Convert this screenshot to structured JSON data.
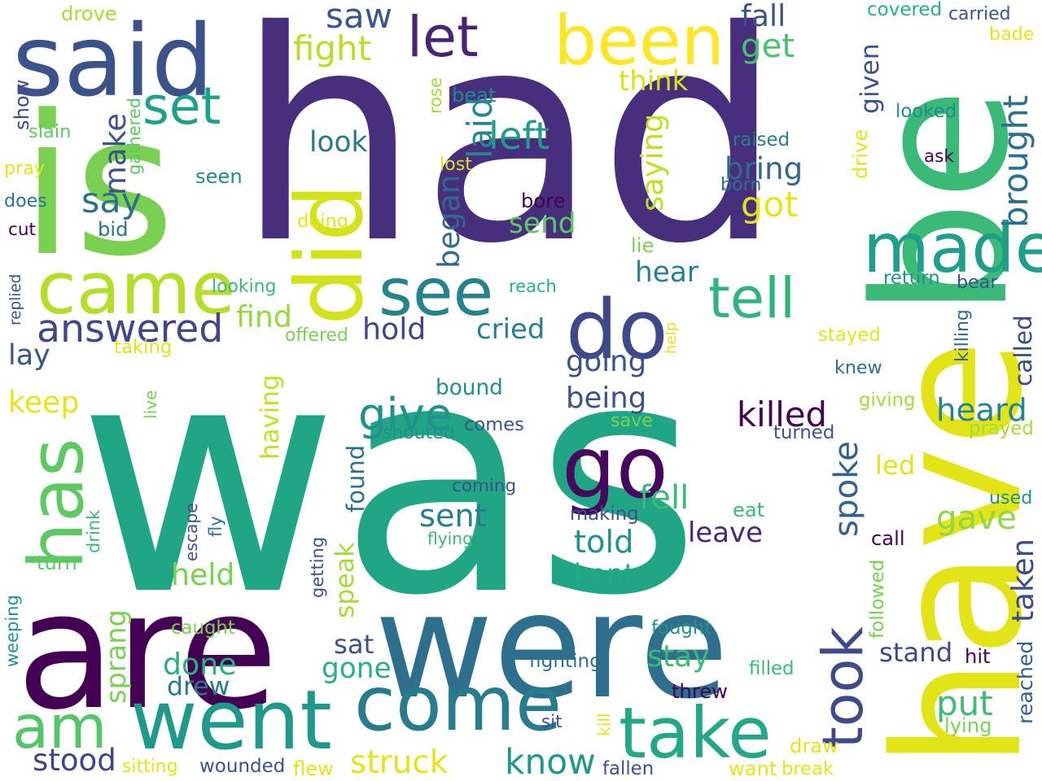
{
  "words": [
    {
      "text": "was",
      "color": "#21a685",
      "vertical": false
    },
    {
      "text": "had",
      "color": "#472f7d",
      "vertical": false
    },
    {
      "text": "is",
      "color": "#7ad151",
      "vertical": false
    },
    {
      "text": "have",
      "color": "#e2e418",
      "vertical": true
    },
    {
      "text": "be",
      "color": "#3aba76",
      "vertical": true
    },
    {
      "text": "are",
      "color": "#440154",
      "vertical": false
    },
    {
      "text": "were",
      "color": "#2e6f8e",
      "vertical": false
    },
    {
      "text": "said",
      "color": "#3b528b",
      "vertical": false
    },
    {
      "text": "let",
      "color": "#482475",
      "vertical": false
    },
    {
      "text": "been",
      "color": "#fde725",
      "vertical": false
    },
    {
      "text": "came",
      "color": "#b5de2b",
      "vertical": false
    },
    {
      "text": "did",
      "color": "#d2e21b",
      "vertical": true
    },
    {
      "text": "do",
      "color": "#3e4989",
      "vertical": false
    },
    {
      "text": "made",
      "color": "#1f9e89",
      "vertical": false
    },
    {
      "text": "tell",
      "color": "#2fb47c",
      "vertical": false
    },
    {
      "text": "went",
      "color": "#1f9a8a",
      "vertical": false
    },
    {
      "text": "come",
      "color": "#287c8e",
      "vertical": false
    },
    {
      "text": "take",
      "color": "#22a884",
      "vertical": false
    },
    {
      "text": "go",
      "color": "#46085c",
      "vertical": false
    },
    {
      "text": "see",
      "color": "#25838e",
      "vertical": false
    },
    {
      "text": "took",
      "color": "#3e4a89",
      "vertical": true
    },
    {
      "text": "has",
      "color": "#5ec962",
      "vertical": true
    },
    {
      "text": "am",
      "color": "#54c568",
      "vertical": false
    },
    {
      "text": "set",
      "color": "#1fa188",
      "vertical": false
    },
    {
      "text": "answered",
      "color": "#3f4788",
      "vertical": false
    },
    {
      "text": "give",
      "color": "#20928c",
      "vertical": false
    },
    {
      "text": "killed",
      "color": "#440154",
      "vertical": false
    },
    {
      "text": "heard",
      "color": "#25858e",
      "vertical": false
    },
    {
      "text": "fell",
      "color": "#3aba76",
      "vertical": false
    },
    {
      "text": "spoke",
      "color": "#33638d",
      "vertical": true
    },
    {
      "text": "fight",
      "color": "#b8de29",
      "vertical": false
    },
    {
      "text": "left",
      "color": "#1e9b8a",
      "vertical": false
    },
    {
      "text": "bring",
      "color": "#31688e",
      "vertical": false
    },
    {
      "text": "got",
      "color": "#e5e419",
      "vertical": false
    },
    {
      "text": "brought",
      "color": "#2d708e",
      "vertical": true
    },
    {
      "text": "saw",
      "color": "#39558c",
      "vertical": false
    },
    {
      "text": "get",
      "color": "#4ac16d",
      "vertical": false
    },
    {
      "text": "make",
      "color": "#3b528b",
      "vertical": true
    },
    {
      "text": "say",
      "color": "#2c728e",
      "vertical": false
    },
    {
      "text": "know",
      "color": "#1f988b",
      "vertical": false
    },
    {
      "text": "struck",
      "color": "#e5e419",
      "vertical": false
    },
    {
      "text": "stood",
      "color": "#414487",
      "vertical": false
    },
    {
      "text": "put",
      "color": "#3fbc73",
      "vertical": false
    },
    {
      "text": "gave",
      "color": "#8fd744",
      "vertical": false
    },
    {
      "text": "told",
      "color": "#21918c",
      "vertical": false
    },
    {
      "text": "sent",
      "color": "#287d8e",
      "vertical": false
    },
    {
      "text": "found",
      "color": "#2c728e",
      "vertical": true
    },
    {
      "text": "think",
      "color": "#d8e219",
      "vertical": false
    },
    {
      "text": "saying",
      "color": "#c0df25",
      "vertical": true
    },
    {
      "text": "fall",
      "color": "#3b528b",
      "vertical": false
    },
    {
      "text": "look",
      "color": "#2a788e",
      "vertical": false
    },
    {
      "text": "find",
      "color": "#95d840",
      "vertical": false
    },
    {
      "text": "hold",
      "color": "#404688",
      "vertical": false
    },
    {
      "text": "cried",
      "color": "#27808e",
      "vertical": false
    },
    {
      "text": "going",
      "color": "#3b528b",
      "vertical": false
    },
    {
      "text": "being",
      "color": "#3b528b",
      "vertical": false
    },
    {
      "text": "laid",
      "color": "#25848e",
      "vertical": true
    },
    {
      "text": "send",
      "color": "#5ec962",
      "vertical": false
    },
    {
      "text": "hear",
      "color": "#26828e",
      "vertical": false
    },
    {
      "text": "called",
      "color": "#3e4989",
      "vertical": true
    },
    {
      "text": "began",
      "color": "#31688e",
      "vertical": true
    },
    {
      "text": "leave",
      "color": "#482878",
      "vertical": false
    },
    {
      "text": "held",
      "color": "#7ad151",
      "vertical": false
    },
    {
      "text": "kept",
      "color": "#22a884",
      "vertical": false
    },
    {
      "text": "done",
      "color": "#2ab07f",
      "vertical": false
    },
    {
      "text": "drew",
      "color": "#2a788e",
      "vertical": false
    },
    {
      "text": "stay",
      "color": "#3aba76",
      "vertical": false
    },
    {
      "text": "stand",
      "color": "#3e4989",
      "vertical": false
    },
    {
      "text": "sat",
      "color": "#3b528b",
      "vertical": false
    },
    {
      "text": "gone",
      "color": "#2ab07f",
      "vertical": false
    },
    {
      "text": "keep",
      "color": "#e7e419",
      "vertical": false
    },
    {
      "text": "lay",
      "color": "#3b528b",
      "vertical": false
    },
    {
      "text": "led",
      "color": "#e2e418",
      "vertical": false
    },
    {
      "text": "taken",
      "color": "#3e4a89",
      "vertical": true
    },
    {
      "text": "reached",
      "color": "#34608d",
      "vertical": true
    },
    {
      "text": "given",
      "color": "#3b528b",
      "vertical": true
    },
    {
      "text": "having",
      "color": "#c2df23",
      "vertical": true
    },
    {
      "text": "speak",
      "color": "#a5db36",
      "vertical": true
    },
    {
      "text": "sprang",
      "color": "#7ad151",
      "vertical": true
    },
    {
      "text": "drove",
      "color": "#a8db34",
      "vertical": false
    },
    {
      "text": "covered",
      "color": "#29af7f",
      "vertical": false
    },
    {
      "text": "carried",
      "color": "#39568c",
      "vertical": false
    },
    {
      "text": "bade",
      "color": "#e5e419",
      "vertical": false
    },
    {
      "text": "show",
      "color": "#3e4989",
      "vertical": true
    },
    {
      "text": "slain",
      "color": "#5ec962",
      "vertical": false
    },
    {
      "text": "gathered",
      "color": "#5ec962",
      "vertical": true
    },
    {
      "text": "beat",
      "color": "#23898e",
      "vertical": false
    },
    {
      "text": "rose",
      "color": "#a0da39",
      "vertical": true
    },
    {
      "text": "looked",
      "color": "#23898e",
      "vertical": false
    },
    {
      "text": "pray",
      "color": "#e5e419",
      "vertical": false
    },
    {
      "text": "lost",
      "color": "#d8e219",
      "vertical": false
    },
    {
      "text": "raised",
      "color": "#277f8e",
      "vertical": false
    },
    {
      "text": "drive",
      "color": "#e5e419",
      "vertical": true
    },
    {
      "text": "ask",
      "color": "#440154",
      "vertical": false
    },
    {
      "text": "seen",
      "color": "#23898e",
      "vertical": false
    },
    {
      "text": "born",
      "color": "#2c718e",
      "vertical": false
    },
    {
      "text": "does",
      "color": "#2c728e",
      "vertical": false
    },
    {
      "text": "bore",
      "color": "#440154",
      "vertical": false
    },
    {
      "text": "cut",
      "color": "#440154",
      "vertical": false
    },
    {
      "text": "bid",
      "color": "#2c728e",
      "vertical": false
    },
    {
      "text": "doing",
      "color": "#e5e419",
      "vertical": false
    },
    {
      "text": "lie",
      "color": "#7ad151",
      "vertical": false
    },
    {
      "text": "replied",
      "color": "#3b528b",
      "vertical": true
    },
    {
      "text": "looking",
      "color": "#3aba76",
      "vertical": false
    },
    {
      "text": "reach",
      "color": "#2ab07f",
      "vertical": false
    },
    {
      "text": "return",
      "color": "#21918c",
      "vertical": false
    },
    {
      "text": "bear",
      "color": "#3b528b",
      "vertical": false
    },
    {
      "text": "offered",
      "color": "#7ad151",
      "vertical": false
    },
    {
      "text": "help",
      "color": "#e5e419",
      "vertical": true
    },
    {
      "text": "killing",
      "color": "#31688e",
      "vertical": true
    },
    {
      "text": "stayed",
      "color": "#e5e419",
      "vertical": false
    },
    {
      "text": "taking",
      "color": "#e5e419",
      "vertical": false
    },
    {
      "text": "knew",
      "color": "#2c718e",
      "vertical": false
    },
    {
      "text": "bound",
      "color": "#21918c",
      "vertical": false
    },
    {
      "text": "live",
      "color": "#7ad151",
      "vertical": true
    },
    {
      "text": "giving",
      "color": "#a5db36",
      "vertical": false
    },
    {
      "text": "comes",
      "color": "#3b528b",
      "vertical": false
    },
    {
      "text": "save",
      "color": "#7ad151",
      "vertical": false
    },
    {
      "text": "turned",
      "color": "#3b528b",
      "vertical": false
    },
    {
      "text": "prayed",
      "color": "#a5db36",
      "vertical": false
    },
    {
      "text": "shouted",
      "color": "#21918c",
      "vertical": false
    },
    {
      "text": "coming",
      "color": "#3b528b",
      "vertical": false
    },
    {
      "text": "escape",
      "color": "#3b528b",
      "vertical": true
    },
    {
      "text": "drink",
      "color": "#3aba76",
      "vertical": true
    },
    {
      "text": "fly",
      "color": "#2c728e",
      "vertical": true
    },
    {
      "text": "making",
      "color": "#3b528b",
      "vertical": false
    },
    {
      "text": "eat",
      "color": "#3aba76",
      "vertical": false
    },
    {
      "text": "used",
      "color": "#21918c",
      "vertical": false
    },
    {
      "text": "flying",
      "color": "#3aba76",
      "vertical": false
    },
    {
      "text": "call",
      "color": "#440154",
      "vertical": false
    },
    {
      "text": "turn",
      "color": "#5ec962",
      "vertical": false
    },
    {
      "text": "getting",
      "color": "#3b528b",
      "vertical": true
    },
    {
      "text": "followed",
      "color": "#7ad151",
      "vertical": true
    },
    {
      "text": "weeping",
      "color": "#21918c",
      "vertical": true
    },
    {
      "text": "caught",
      "color": "#7ad151",
      "vertical": false
    },
    {
      "text": "fought",
      "color": "#21918c",
      "vertical": false
    },
    {
      "text": "fighting",
      "color": "#2c718e",
      "vertical": false
    },
    {
      "text": "hit",
      "color": "#440154",
      "vertical": false
    },
    {
      "text": "filled",
      "color": "#3aba76",
      "vertical": false
    },
    {
      "text": "threw",
      "color": "#440154",
      "vertical": false
    },
    {
      "text": "kill",
      "color": "#e5e419",
      "vertical": true
    },
    {
      "text": "sit",
      "color": "#3b528b",
      "vertical": false
    },
    {
      "text": "lying",
      "color": "#7ad151",
      "vertical": false
    },
    {
      "text": "draw",
      "color": "#e5e419",
      "vertical": false
    },
    {
      "text": "sitting",
      "color": "#e5e419",
      "vertical": false
    },
    {
      "text": "wounded",
      "color": "#3b528b",
      "vertical": false
    },
    {
      "text": "flew",
      "color": "#e5e419",
      "vertical": false
    },
    {
      "text": "fallen",
      "color": "#3b528b",
      "vertical": false
    },
    {
      "text": "want",
      "color": "#e5e419",
      "vertical": false
    },
    {
      "text": "break",
      "color": "#e5e419",
      "vertical": false
    }
  ]
}
